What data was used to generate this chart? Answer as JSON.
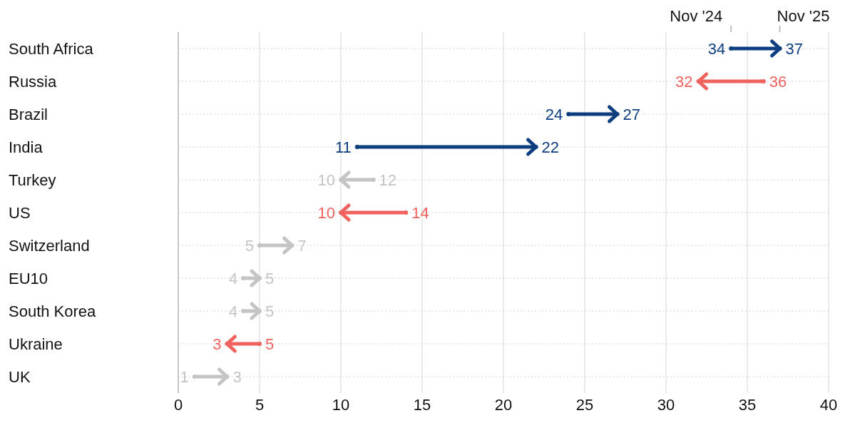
{
  "chart_data": {
    "type": "scatter",
    "orientation": "horizontal",
    "categories": [
      "South Africa",
      "Russia",
      "Brazil",
      "India",
      "Turkey",
      "US",
      "Switzerland",
      "EU10",
      "South Korea",
      "Ukraine",
      "UK"
    ],
    "series": [
      {
        "name": "Nov '24",
        "values": [
          34,
          36,
          24,
          11,
          12,
          14,
          5,
          4,
          4,
          5,
          1
        ],
        "colors": [
          "#0d3f80",
          "#f0625e",
          "#0d3f80",
          "#0d3f80",
          "#c4c4c4",
          "#f0625e",
          "#c4c4c4",
          "#c4c4c4",
          "#c4c4c4",
          "#f0625e",
          "#c4c4c4"
        ]
      },
      {
        "name": "Nov '25",
        "values": [
          37,
          32,
          27,
          22,
          10,
          10,
          7,
          5,
          5,
          3,
          3
        ],
        "colors": [
          "#0d3f80",
          "#f0625e",
          "#0d3f80",
          "#0d3f80",
          "#c4c4c4",
          "#f0625e",
          "#c4c4c4",
          "#c4c4c4",
          "#c4c4c4",
          "#f0625e",
          "#c4c4c4"
        ]
      }
    ],
    "xlim": [
      0,
      40
    ],
    "xticks": [
      0,
      5,
      10,
      15,
      20,
      25,
      30,
      35,
      40
    ],
    "grid": true,
    "data_labels": true
  }
}
